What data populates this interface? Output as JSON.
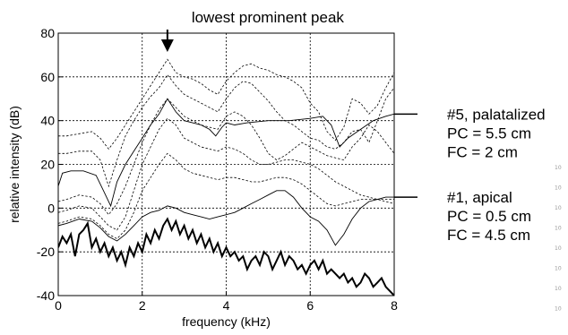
{
  "chart_data": {
    "type": "line",
    "xlabel": "frequency (kHz)",
    "ylabel": "relative intensity (dB)",
    "xlim": [
      0,
      8
    ],
    "ylim": [
      -40,
      80
    ],
    "xticks": [
      0,
      2,
      4,
      6,
      8
    ],
    "yticks": [
      -40,
      -20,
      0,
      20,
      40,
      60,
      80
    ],
    "grid": true,
    "annotations": {
      "peak": {
        "text": "lowest prominent peak",
        "x": 2.6
      },
      "upper": {
        "lines": [
          "#5, palatalized",
          "PC = 5.5 cm",
          "FC = 2 cm"
        ],
        "y": 43
      },
      "lower": {
        "lines": [
          "#1, apical",
          "PC = 0.5 cm",
          "FC = 4.5 cm"
        ],
        "y": 5
      }
    },
    "margin_marks": [
      "10",
      "10",
      "10",
      "10",
      "10",
      "10",
      "10",
      "10"
    ],
    "series": [
      {
        "style": "dashed",
        "x": [
          0,
          0.2,
          0.5,
          0.8,
          1.0,
          1.2,
          1.4,
          1.6,
          1.8,
          2.0,
          2.2,
          2.4,
          2.6,
          2.8,
          3.0,
          3.2,
          3.4,
          3.6,
          3.8,
          4.0,
          4.2,
          4.4,
          4.6,
          4.8,
          5.0,
          5.2,
          5.4,
          5.6,
          5.8,
          6.0,
          6.2,
          6.4,
          6.6,
          6.8,
          7.0,
          7.2,
          7.4,
          7.6,
          7.8,
          8.0
        ],
        "y": [
          33,
          33,
          34,
          35,
          32,
          27,
          32,
          38,
          44,
          50,
          56,
          62,
          68,
          62,
          60,
          59,
          57,
          54,
          52,
          58,
          62,
          65,
          66,
          64,
          63,
          61,
          60,
          58,
          55,
          48,
          44,
          35,
          31,
          37,
          50,
          48,
          43,
          47,
          55,
          62
        ]
      },
      {
        "style": "dashed",
        "x": [
          0,
          0.2,
          0.5,
          0.8,
          1.0,
          1.2,
          1.4,
          1.6,
          1.8,
          2.0,
          2.2,
          2.4,
          2.6,
          2.8,
          3.0,
          3.2,
          3.4,
          3.6,
          3.8,
          4.0,
          4.2,
          4.4,
          4.6,
          4.8,
          5.0,
          5.2,
          5.4,
          5.6,
          5.8,
          6.0,
          6.2,
          6.4,
          6.6,
          6.8,
          7.0,
          7.2,
          7.4,
          7.6,
          7.8,
          8.0
        ],
        "y": [
          25,
          25,
          26,
          26,
          22,
          10,
          22,
          33,
          40,
          46,
          51,
          55,
          61,
          56,
          52,
          50,
          48,
          46,
          44,
          50,
          55,
          58,
          57,
          53,
          49,
          44,
          40,
          38,
          35,
          32,
          31,
          28,
          27,
          30,
          35,
          36,
          30,
          40,
          50,
          55
        ]
      },
      {
        "style": "dashed",
        "x": [
          0,
          0.2,
          0.5,
          0.8,
          1.0,
          1.2,
          1.4,
          1.6,
          1.8,
          2.0,
          2.2,
          2.4,
          2.6,
          2.8,
          3.0,
          3.2,
          3.4,
          3.6,
          3.8,
          4.0,
          4.2,
          4.4,
          4.6,
          4.8,
          5.0,
          5.2,
          5.4,
          5.6,
          5.8,
          6.0,
          6.2,
          6.4,
          6.6,
          6.8,
          7.0,
          7.2,
          7.4,
          7.6,
          7.8,
          8.0
        ],
        "y": [
          3,
          4,
          6,
          5,
          2,
          -3,
          2,
          10,
          20,
          30,
          38,
          45,
          50,
          46,
          42,
          40,
          38,
          37,
          36,
          42,
          44,
          42,
          38,
          32,
          25,
          22,
          24,
          27,
          30,
          28,
          26,
          24,
          23,
          22,
          28,
          32,
          38,
          35,
          30,
          25
        ]
      },
      {
        "style": "dashed",
        "x": [
          0,
          0.2,
          0.5,
          0.8,
          1.0,
          1.2,
          1.4,
          1.6,
          1.8,
          2.0,
          2.2,
          2.4,
          2.6,
          2.8,
          3.0,
          3.2,
          3.4,
          3.6,
          3.8,
          4.0,
          4.2,
          4.4,
          4.6,
          4.8,
          5.0,
          5.2,
          5.4,
          5.6,
          5.8,
          6.0,
          6.2,
          6.4,
          6.6,
          6.8,
          7.0,
          7.2,
          7.4,
          7.6,
          7.8,
          8.0
        ],
        "y": [
          -2,
          -1,
          1,
          0,
          -4,
          -8,
          -10,
          -4,
          8,
          20,
          28,
          36,
          41,
          38,
          32,
          30,
          28,
          27,
          26,
          28,
          27,
          25,
          22,
          20,
          20,
          21,
          22,
          22,
          21,
          20,
          18,
          15,
          12,
          10,
          8,
          6,
          5,
          4,
          3,
          2
        ]
      },
      {
        "style": "dashed",
        "x": [
          0,
          0.2,
          0.5,
          0.8,
          1.0,
          1.2,
          1.4,
          1.6,
          1.8,
          2.0,
          2.2,
          2.4,
          2.6,
          2.8,
          3.0,
          3.2,
          3.4,
          3.6,
          3.8,
          4.0,
          4.2,
          4.4,
          4.6,
          4.8,
          5.0,
          5.2,
          5.4,
          5.6,
          5.8,
          6.0,
          6.2,
          6.4,
          6.6,
          6.8,
          7.0,
          7.2,
          7.4,
          7.6,
          7.8,
          8.0
        ],
        "y": [
          -7,
          -6,
          -4,
          -5,
          -8,
          -12,
          -14,
          -10,
          -2,
          8,
          14,
          20,
          25,
          22,
          18,
          16,
          15,
          14,
          13,
          14,
          14,
          13,
          12,
          12,
          13,
          14,
          14,
          13,
          11,
          8,
          5,
          2,
          1,
          2,
          3,
          4,
          4,
          4,
          4,
          4
        ]
      },
      {
        "style": "thin",
        "x": [
          0,
          0.1,
          0.3,
          0.6,
          0.9,
          1.1,
          1.25,
          1.4,
          1.6,
          1.8,
          2.0,
          2.2,
          2.4,
          2.6,
          2.8,
          3.0,
          3.2,
          3.4,
          3.6,
          3.75,
          3.9,
          4.0,
          4.2,
          4.5,
          5.0,
          5.5,
          6.0,
          6.3,
          6.5,
          6.7,
          6.9,
          7.2,
          7.5,
          7.8,
          8.0
        ],
        "y": [
          10,
          16,
          17,
          17,
          15,
          7,
          1,
          12,
          20,
          26,
          32,
          38,
          43,
          50,
          44,
          40,
          39,
          38,
          36,
          33,
          37,
          39,
          38,
          39,
          40,
          40,
          41,
          42,
          38,
          28,
          32,
          36,
          40,
          42,
          43
        ]
      },
      {
        "style": "thin",
        "x": [
          0,
          0.2,
          0.5,
          0.8,
          1.0,
          1.2,
          1.4,
          1.6,
          1.8,
          2.0,
          2.2,
          2.4,
          2.6,
          2.8,
          3.0,
          3.2,
          3.4,
          3.6,
          3.8,
          4.0,
          4.2,
          4.4,
          4.6,
          4.8,
          5.0,
          5.2,
          5.4,
          5.6,
          5.8,
          6.0,
          6.2,
          6.4,
          6.6,
          6.8,
          7.0,
          7.2,
          7.4,
          7.6,
          7.8,
          8.0
        ],
        "y": [
          -8,
          -7,
          -5,
          -6,
          -9,
          -13,
          -15,
          -12,
          -8,
          -4,
          -2,
          -1,
          1,
          0,
          -2,
          -3,
          -4,
          -5,
          -4,
          -3,
          -2,
          0,
          2,
          4,
          6,
          8,
          8,
          5,
          0,
          -4,
          -6,
          -10,
          -17,
          -12,
          -5,
          0,
          3,
          4,
          5,
          5
        ]
      },
      {
        "style": "bold",
        "x": [
          0,
          0.1,
          0.2,
          0.3,
          0.4,
          0.5,
          0.6,
          0.7,
          0.8,
          0.9,
          1.0,
          1.1,
          1.2,
          1.3,
          1.4,
          1.5,
          1.6,
          1.7,
          1.8,
          1.9,
          2.0,
          2.1,
          2.2,
          2.3,
          2.4,
          2.5,
          2.6,
          2.7,
          2.8,
          2.9,
          3.0,
          3.1,
          3.2,
          3.3,
          3.4,
          3.5,
          3.6,
          3.7,
          3.8,
          3.9,
          4.0,
          4.1,
          4.2,
          4.3,
          4.4,
          4.5,
          4.6,
          4.7,
          4.8,
          4.9,
          5.0,
          5.1,
          5.2,
          5.3,
          5.4,
          5.5,
          5.6,
          5.7,
          5.8,
          5.9,
          6.0,
          6.1,
          6.2,
          6.3,
          6.4,
          6.5,
          6.6,
          6.7,
          6.8,
          6.9,
          7.0,
          7.1,
          7.2,
          7.3,
          7.4,
          7.5,
          7.6,
          7.7,
          7.8,
          7.9,
          8.0
        ],
        "y": [
          -18,
          -13,
          -16,
          -12,
          -22,
          -12,
          -10,
          -7,
          -18,
          -14,
          -20,
          -16,
          -22,
          -18,
          -24,
          -20,
          -26,
          -18,
          -22,
          -16,
          -20,
          -12,
          -16,
          -10,
          -14,
          -8,
          -5,
          -10,
          -6,
          -12,
          -8,
          -14,
          -10,
          -16,
          -12,
          -18,
          -14,
          -20,
          -16,
          -22,
          -18,
          -22,
          -20,
          -24,
          -22,
          -28,
          -24,
          -22,
          -26,
          -20,
          -22,
          -28,
          -24,
          -20,
          -26,
          -22,
          -24,
          -28,
          -26,
          -30,
          -26,
          -24,
          -28,
          -24,
          -30,
          -28,
          -30,
          -32,
          -30,
          -34,
          -32,
          -36,
          -34,
          -30,
          -32,
          -36,
          -34,
          -32,
          -36,
          -38,
          -40
        ]
      }
    ]
  }
}
